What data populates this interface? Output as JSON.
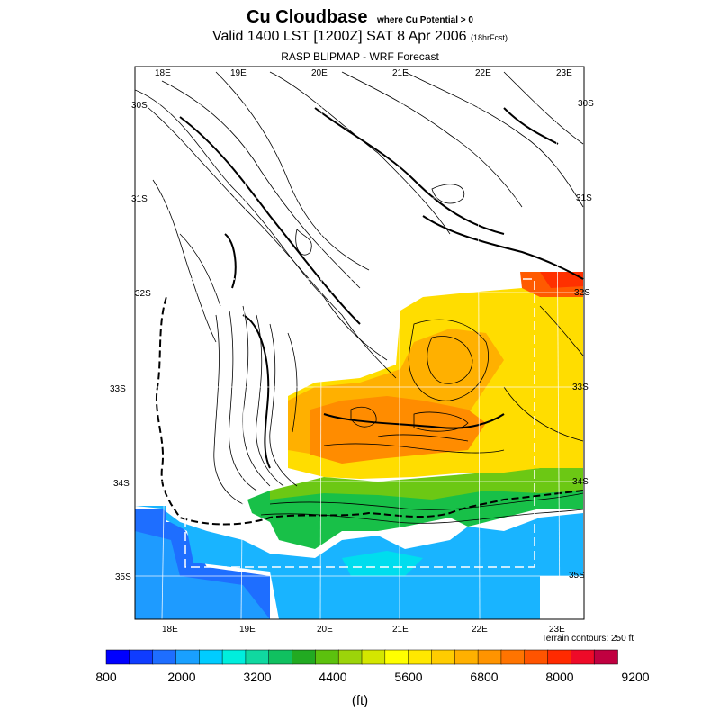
{
  "title": {
    "main": "Cu Cloudbase",
    "note": "where Cu Potential > 0"
  },
  "subtitle": {
    "main": "Valid 1400 LST [1200Z] SAT 8 Apr 2006",
    "small": "(18hrFcst)"
  },
  "model": "RASP BLIPMAP - WRF Forecast",
  "terrain_note": "Terrain contours: 250 ft",
  "unit": "(ft)",
  "axes": {
    "top_lon": [
      "18E",
      "19E",
      "20E",
      "21E",
      "22E",
      "23E"
    ],
    "bottom_lon": [
      "18E",
      "19E",
      "20E",
      "21E",
      "22E",
      "23E"
    ],
    "left_lat": [
      "30S",
      "31S",
      "32S",
      "33S",
      "34S",
      "35S"
    ],
    "right_lat": [
      "30S",
      "31S",
      "32S",
      "33S",
      "34S",
      "35S"
    ]
  },
  "colorbar": {
    "colors": [
      "#0000ff",
      "#0f3cff",
      "#1e6eff",
      "#19a0ff",
      "#00ccff",
      "#00eedd",
      "#10d8a0",
      "#10c060",
      "#22aa22",
      "#5cc10e",
      "#9cd40a",
      "#d4e600",
      "#ffff00",
      "#ffe800",
      "#ffcc00",
      "#ffb000",
      "#ff9400",
      "#ff7400",
      "#ff5400",
      "#ff2a00",
      "#ee0a28",
      "#c00040"
    ],
    "labels": [
      "800",
      "2000",
      "3200",
      "4400",
      "5600",
      "6800",
      "8000",
      "9200"
    ]
  }
}
